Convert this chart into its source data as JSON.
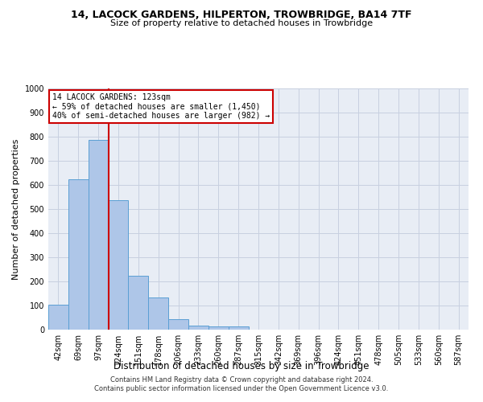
{
  "title": "14, LACOCK GARDENS, HILPERTON, TROWBRIDGE, BA14 7TF",
  "subtitle": "Size of property relative to detached houses in Trowbridge",
  "xlabel": "Distribution of detached houses by size in Trowbridge",
  "ylabel": "Number of detached properties",
  "footer_line1": "Contains HM Land Registry data © Crown copyright and database right 2024.",
  "footer_line2": "Contains public sector information licensed under the Open Government Licence v3.0.",
  "bar_labels": [
    "42sqm",
    "69sqm",
    "97sqm",
    "124sqm",
    "151sqm",
    "178sqm",
    "206sqm",
    "233sqm",
    "260sqm",
    "287sqm",
    "315sqm",
    "342sqm",
    "369sqm",
    "396sqm",
    "424sqm",
    "451sqm",
    "478sqm",
    "505sqm",
    "533sqm",
    "560sqm",
    "587sqm"
  ],
  "bar_values": [
    102,
    622,
    786,
    538,
    222,
    132,
    42,
    17,
    12,
    12,
    0,
    0,
    0,
    0,
    0,
    0,
    0,
    0,
    0,
    0,
    0
  ],
  "bar_color": "#aec6e8",
  "bar_edgecolor": "#5a9fd4",
  "vline_color": "#cc0000",
  "ylim": [
    0,
    1000
  ],
  "yticks": [
    0,
    100,
    200,
    300,
    400,
    500,
    600,
    700,
    800,
    900,
    1000
  ],
  "annotation_line1": "14 LACOCK GARDENS: 123sqm",
  "annotation_line2": "← 59% of detached houses are smaller (1,450)",
  "annotation_line3": "40% of semi-detached houses are larger (982) →",
  "annotation_box_color": "#ffffff",
  "annotation_box_edgecolor": "#cc0000",
  "grid_color": "#c8d0e0",
  "background_color": "#e8edf5",
  "title_fontsize": 9,
  "subtitle_fontsize": 8,
  "ylabel_fontsize": 8,
  "xlabel_fontsize": 8.5,
  "tick_fontsize": 7,
  "annotation_fontsize": 7,
  "footer_fontsize": 6
}
